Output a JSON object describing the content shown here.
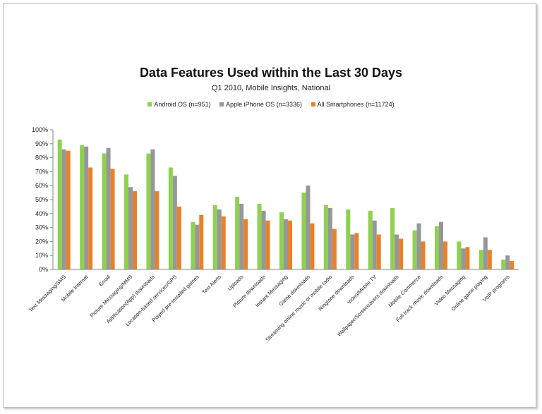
{
  "chart_data": {
    "type": "bar",
    "title": "Data Features Used within the Last 30 Days",
    "subtitle": "Q1 2010, Mobile Insights, National",
    "ylim": [
      0,
      100
    ],
    "yticks": [
      "0%",
      "10%",
      "20%",
      "30%",
      "40%",
      "50%",
      "60%",
      "70%",
      "80%",
      "90%",
      "100%"
    ],
    "legend_position": "top-center",
    "grid": false,
    "categories": [
      "Text Messaging/SMS",
      "Mobile Internet",
      "Email",
      "Picture Messaging/MMS",
      "Application(App) downloads",
      "Location-based services/GPS",
      "Played pre-installed games",
      "Text Alerts",
      "Uploads",
      "Picture downloads",
      "Instant Messaging",
      "Game downloads",
      "Streaming online music or mobile radio",
      "Ringtone downloads",
      "Video/Mobile TV",
      "Wallpaper/Screensavers downloads",
      "Mobile Commerce",
      "Full track music downloads",
      "Video Messaging",
      "Online game playing",
      "VoIP programs"
    ],
    "series": [
      {
        "name": "Android OS (n=951)",
        "color": "#8fd14f",
        "values": [
          93,
          89,
          83,
          68,
          83,
          73,
          34,
          46,
          52,
          47,
          41,
          55,
          46,
          43,
          42,
          44,
          28,
          31,
          20,
          14,
          7
        ]
      },
      {
        "name": "Apple iPhone OS (n=3336)",
        "color": "#95979c",
        "values": [
          86,
          88,
          87,
          59,
          86,
          67,
          32,
          43,
          47,
          42,
          36,
          60,
          44,
          25,
          35,
          25,
          33,
          34,
          15,
          23,
          10
        ]
      },
      {
        "name": "All Smartphones (n=11724)",
        "color": "#e8822a",
        "values": [
          85,
          73,
          72,
          56,
          56,
          45,
          39,
          38,
          36,
          35,
          35,
          33,
          29,
          26,
          25,
          22,
          20,
          20,
          16,
          14,
          6
        ]
      }
    ]
  }
}
